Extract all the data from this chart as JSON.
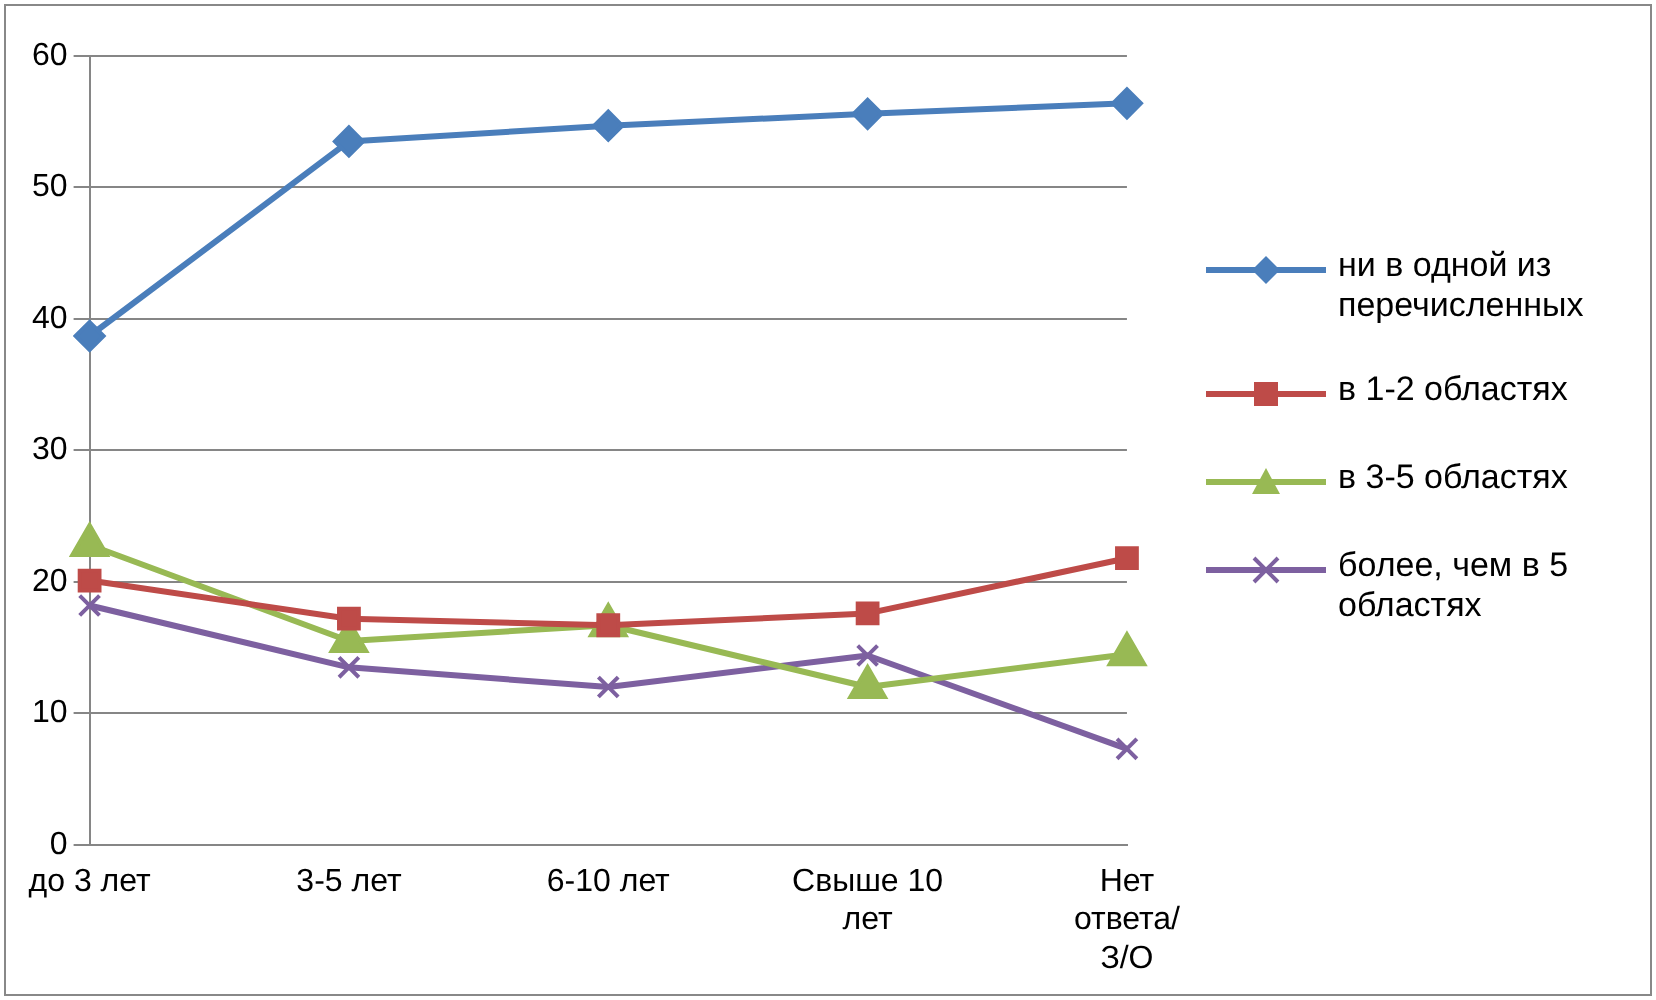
{
  "chart_data": {
    "type": "line",
    "categories": [
      "до 3 лет",
      "3-5 лет",
      "6-10 лет",
      "Свыше 10 лет",
      "Нет ответа/ З/О"
    ],
    "series": [
      {
        "name": "ни в одной из перечисленных",
        "color": "#4a7ebb",
        "marker": "diamond",
        "values": [
          38.7,
          53.5,
          54.7,
          55.6,
          56.4
        ]
      },
      {
        "name": "в 1-2 областях",
        "color": "#be4b48",
        "marker": "square",
        "values": [
          20.1,
          17.2,
          16.7,
          17.6,
          21.8
        ]
      },
      {
        "name": "в 3-5 областях",
        "color": "#98b954",
        "marker": "triangle",
        "values": [
          22.8,
          15.5,
          16.7,
          12.0,
          14.5
        ]
      },
      {
        "name": "более, чем в 5 областях",
        "color": "#7d60a0",
        "marker": "cross",
        "values": [
          18.2,
          13.5,
          12.0,
          14.4,
          7.3
        ]
      }
    ],
    "ylim": [
      0,
      60
    ],
    "yticks": [
      0,
      10,
      20,
      30,
      40,
      50,
      60
    ],
    "grid": "y",
    "legend": "right"
  }
}
